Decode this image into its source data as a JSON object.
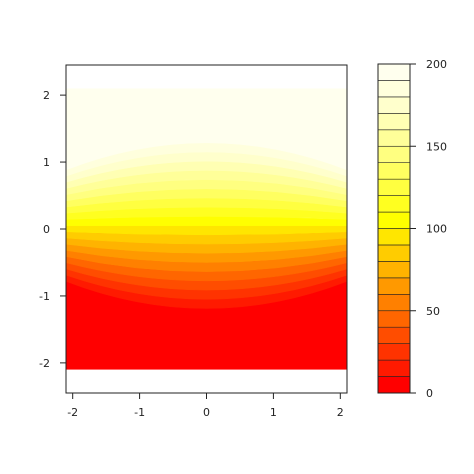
{
  "chart_data": [
    {
      "type": "heatmap",
      "subtype": "filled-contour",
      "xlim": [
        -2.1,
        2.1
      ],
      "ylim": [
        -2.45,
        2.45
      ],
      "data_extent": {
        "x": [
          -2.1,
          2.1
        ],
        "y": [
          -2.1,
          2.1
        ]
      },
      "x_ticks": [
        -2,
        -1,
        0,
        1,
        2
      ],
      "x_tick_labels": [
        "-2",
        "-1",
        "0",
        "1",
        "2"
      ],
      "y_ticks": [
        -2,
        -1,
        0,
        1,
        2
      ],
      "y_tick_labels": [
        "-2",
        "-1",
        "0",
        "1",
        "2"
      ],
      "value_range": [
        0,
        200
      ],
      "levels": [
        0,
        10,
        20,
        30,
        40,
        50,
        60,
        70,
        80,
        90,
        100,
        110,
        120,
        130,
        140,
        150,
        160,
        170,
        180,
        190,
        200
      ],
      "regions": [
        {
          "y_range": [
            -2.1,
            0
          ],
          "value": 0,
          "description": "lower half saturated at minimum"
        },
        {
          "y_range": [
            0,
            2.1
          ],
          "value": 200,
          "description": "upper half saturated at maximum"
        }
      ],
      "gradient_band": {
        "y_range": [
          -1.1,
          1.2
        ],
        "value_from": 0,
        "value_to": 200
      },
      "colormap": "heat",
      "grid": false,
      "title": "",
      "xlabel": "",
      "ylabel": ""
    },
    {
      "type": "colorbar",
      "ticks": [
        0,
        50,
        100,
        150,
        200
      ],
      "tick_labels": [
        "0",
        "50",
        "100",
        "150",
        "200"
      ],
      "n_levels": 20,
      "colors": [
        "#ff0000",
        "#ff1a00",
        "#ff3300",
        "#ff4d00",
        "#ff6600",
        "#ff8000",
        "#ff9900",
        "#ffb300",
        "#ffcc00",
        "#ffe600",
        "#ffff00",
        "#ffff20",
        "#ffff40",
        "#ffff60",
        "#ffff80",
        "#ffff99",
        "#ffffb3",
        "#ffffcc",
        "#ffffdd",
        "#ffffee"
      ]
    }
  ]
}
